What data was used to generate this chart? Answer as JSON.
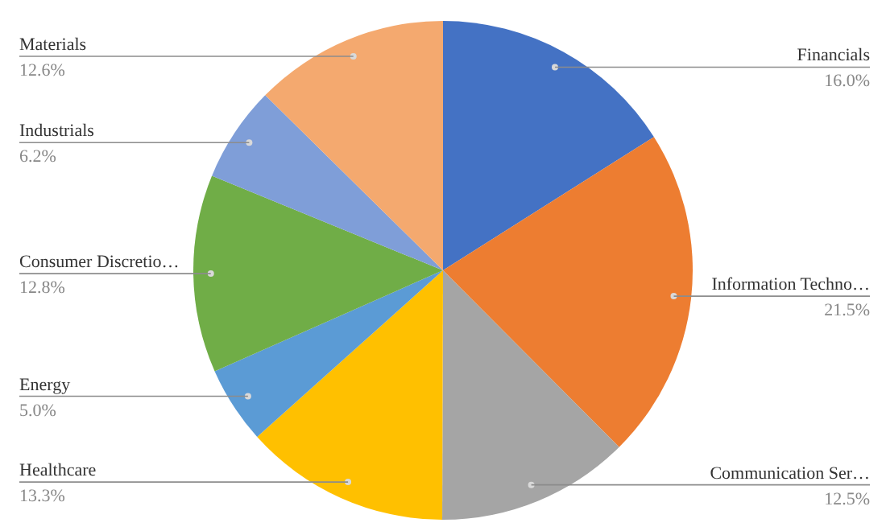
{
  "chart_data": {
    "type": "pie",
    "categories": [
      "Financials",
      "Information Techno…",
      "Communication Ser…",
      "Healthcare",
      "Energy",
      "Consumer Discretio…",
      "Industrials",
      "Materials"
    ],
    "values": [
      16.0,
      21.5,
      12.5,
      13.3,
      5.0,
      12.8,
      6.2,
      12.6
    ],
    "value_labels": [
      "16.0%",
      "21.5%",
      "12.5%",
      "13.3%",
      "5.0%",
      "12.8%",
      "6.2%",
      "12.6%"
    ],
    "colors": [
      "#4472c4",
      "#ed7d31",
      "#a5a5a5",
      "#ffc000",
      "#5b9bd5",
      "#70ad47",
      "#7f9ed8",
      "#f4a96f"
    ]
  }
}
